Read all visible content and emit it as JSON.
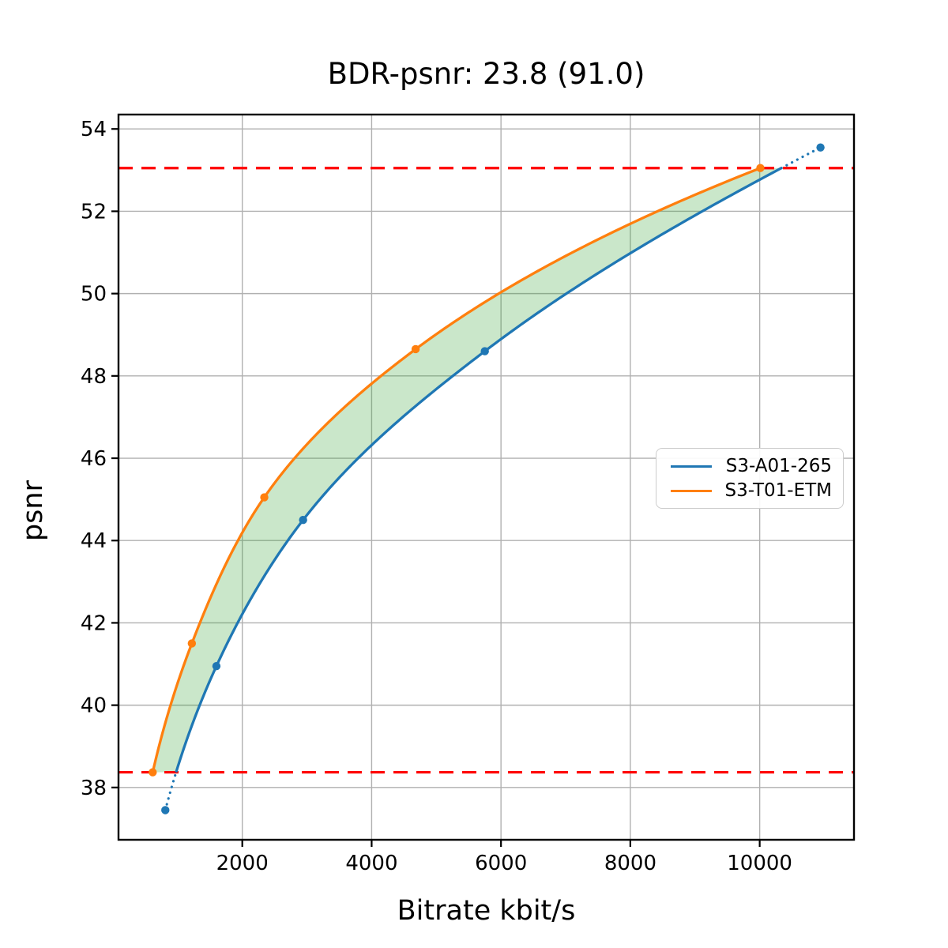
{
  "figure": {
    "title": "BDR-psnr: 23.8 (91.0)",
    "xlabel": "Bitrate kbit/s",
    "ylabel": "psnr"
  },
  "legend": {
    "position": "center right",
    "items": [
      {
        "label": "S3-A01-265",
        "color": "#1f77b4"
      },
      {
        "label": "S3-T01-ETM",
        "color": "#ff7f0e"
      }
    ]
  },
  "chart_data": {
    "type": "line",
    "title": "BDR-psnr: 23.8 (91.0)",
    "bdr_psnr_value": "23.8",
    "bdr_psnr_secondary": "91.0",
    "xlabel": "Bitrate kbit/s",
    "ylabel": "psnr",
    "xlim": [
      86,
      11458
    ],
    "ylim": [
      36.73,
      54.35
    ],
    "x_ticks": [
      2000,
      4000,
      6000,
      8000,
      10000
    ],
    "y_ticks": [
      38,
      40,
      42,
      44,
      46,
      48,
      50,
      52,
      54
    ],
    "grid": true,
    "grid_color": "#b0b0b0",
    "series": [
      {
        "name": "S3-A01-265",
        "color": "#1f77b4",
        "marker": "circle",
        "x": [
          810,
          1600,
          2940,
          5750,
          10940
        ],
        "y": [
          37.45,
          40.95,
          44.5,
          48.6,
          53.55
        ]
      },
      {
        "name": "S3-T01-ETM",
        "color": "#ff7f0e",
        "marker": "circle",
        "x": [
          615,
          1220,
          2340,
          4680,
          10010
        ],
        "y": [
          38.37,
          41.5,
          45.05,
          48.65,
          53.05
        ]
      }
    ],
    "overlap_lines": {
      "style": "dashed",
      "color": "#ff0000",
      "y_low": 38.37,
      "y_high": 53.05
    },
    "fill_between": {
      "color": "#2ca02c",
      "alpha": 0.25
    }
  }
}
